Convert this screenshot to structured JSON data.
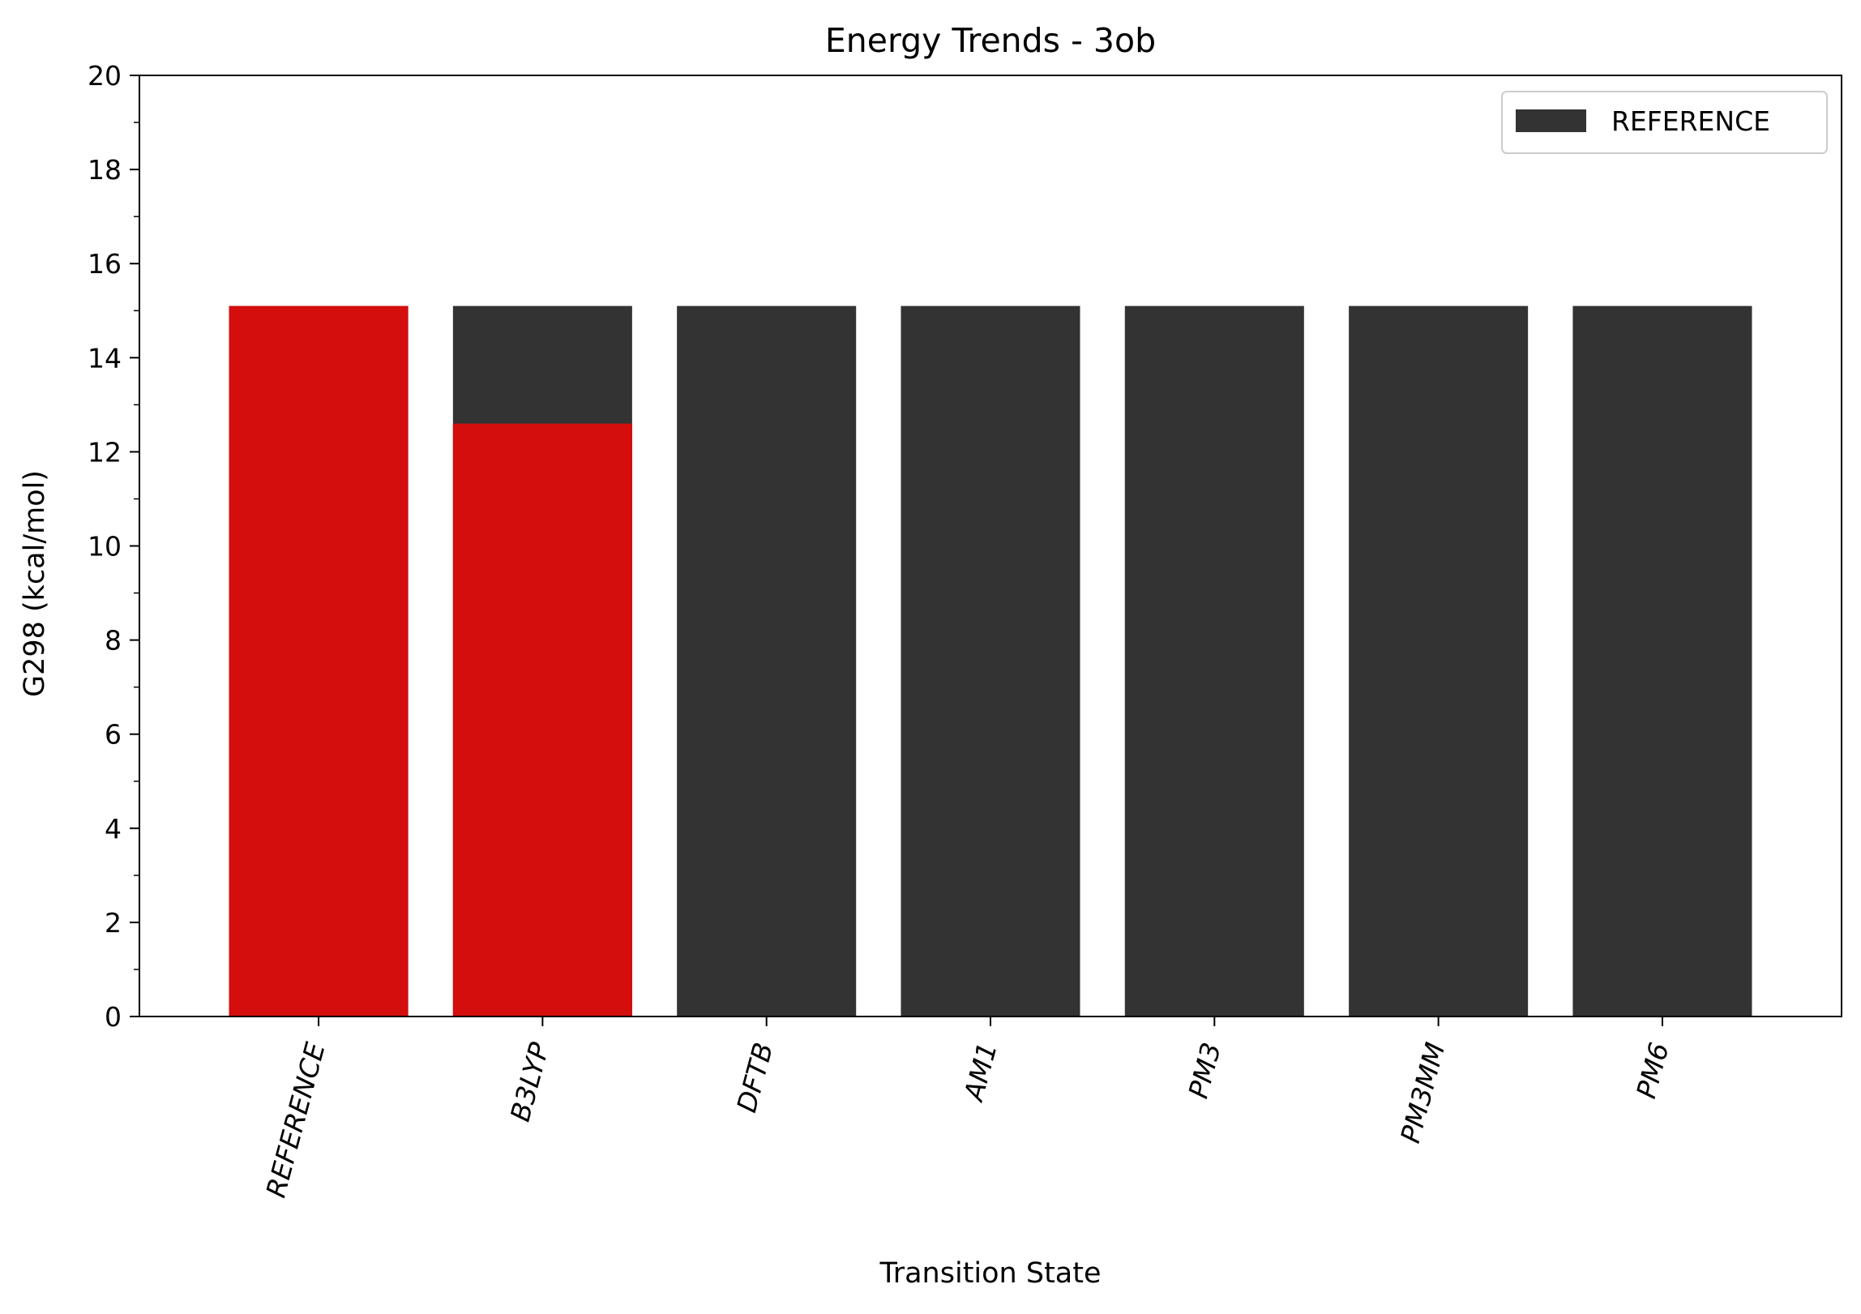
{
  "chart_data": {
    "type": "bar",
    "title": "Energy Trends - 3ob",
    "xlabel": "Transition State",
    "ylabel": "G298 (kcal/mol)",
    "ylim": [
      0,
      20
    ],
    "yticks": [
      "0",
      "2",
      "4",
      "6",
      "8",
      "10",
      "12",
      "14",
      "16",
      "18",
      "20"
    ],
    "categories": [
      "REFERENCE",
      "B3LYP",
      "DFTB",
      "AM1",
      "PM3",
      "PM3MM",
      "PM6"
    ],
    "series": [
      {
        "name": "REFERENCE",
        "color": "#333333",
        "values": [
          15.1,
          15.1,
          15.1,
          15.1,
          15.1,
          15.1,
          15.1
        ]
      },
      {
        "color": "#d40d0d",
        "values": [
          15.1,
          12.6,
          null,
          null,
          null,
          null,
          null
        ]
      }
    ],
    "legend": {
      "placement": "top-right",
      "entries": [
        "REFERENCE"
      ]
    },
    "grid": false
  }
}
